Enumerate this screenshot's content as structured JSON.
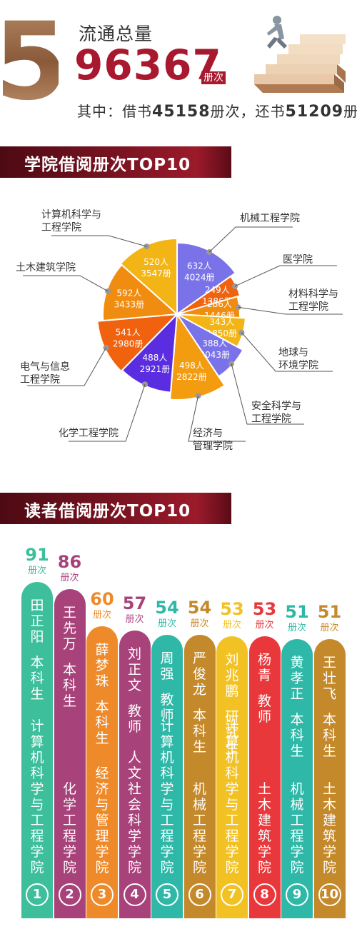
{
  "header": {
    "section_number": "5",
    "total_label": "流通总量",
    "total_value": "96367",
    "total_unit": "册次",
    "summary": {
      "prefix": "其中：借书",
      "borrow_value": "45158",
      "mid": "册次，还书",
      "return_value": "51209",
      "suffix": "册次"
    }
  },
  "section1": {
    "title": "学院借阅册次TOP10"
  },
  "section2": {
    "title": "读者借阅册次TOP10"
  },
  "chart_data": [
    {
      "type": "pie",
      "title": "学院借阅册次TOP10",
      "slices": [
        {
          "label": "机械工程学院",
          "people": "632人",
          "books": "4024册",
          "value": 4024,
          "color": "#7a72e8"
        },
        {
          "label": "医学院",
          "people": "249人",
          "books": "1386册",
          "value": 1386,
          "color": "#f0620e"
        },
        {
          "label": "材料科学与工程学院",
          "people": "286人",
          "books": "1446册",
          "value": 1446,
          "color": "#f08c10"
        },
        {
          "label": "地球与环境学院",
          "people": "343人",
          "books": "1850册",
          "value": 1850,
          "color": "#f3b415"
        },
        {
          "label": "安全科学与工程学院",
          "people": "388人",
          "books": "2043册",
          "value": 2043,
          "color": "#7a72e8"
        },
        {
          "label": "经济与管理学院",
          "people": "498人",
          "books": "2822册",
          "value": 2822,
          "color": "#f39c10"
        },
        {
          "label": "化学工程学院",
          "people": "488人",
          "books": "2921册",
          "value": 2921,
          "color": "#5a2ee0"
        },
        {
          "label": "电气与信息工程学院",
          "people": "541人",
          "books": "2980册",
          "value": 2980,
          "color": "#f0620e"
        },
        {
          "label": "土木建筑学院",
          "people": "592人",
          "books": "3433册",
          "value": 3433,
          "color": "#f08c10"
        },
        {
          "label": "计算机科学与工程学院",
          "people": "520人",
          "books": "3547册",
          "value": 3547,
          "color": "#f3b415"
        }
      ]
    },
    {
      "type": "bar",
      "title": "读者借阅册次TOP10",
      "unit": "册次",
      "readers": [
        {
          "rank": "1",
          "name": "田正阳",
          "role": "本科生",
          "college": "计算机科学与工程学院",
          "count": 91,
          "color": "#3cbf9a"
        },
        {
          "rank": "2",
          "name": "王先万",
          "role": "本科生",
          "college": "化学工程学院",
          "count": 86,
          "color": "#a8427a"
        },
        {
          "rank": "3",
          "name": "薛梦珠",
          "role": "本科生",
          "college": "经济与管理学院",
          "count": 60,
          "color": "#ee8a2a"
        },
        {
          "rank": "4",
          "name": "刘正文",
          "role": "教师",
          "college": "人文社会科学学院",
          "count": 57,
          "color": "#a8427a"
        },
        {
          "rank": "5",
          "name": "周强",
          "role": "教师",
          "college": "计算机科学与工程学院",
          "count": 54,
          "color": "#2fb8a8"
        },
        {
          "rank": "6",
          "name": "严俊龙",
          "role": "本科生",
          "college": "机械工程学院",
          "count": 54,
          "color": "#c4892a"
        },
        {
          "rank": "7",
          "name": "刘兆鹏",
          "role": "研究生",
          "college": "计算机科学与工程学院",
          "count": 53,
          "color": "#f2c224"
        },
        {
          "rank": "8",
          "name": "杨青",
          "role": "教师",
          "college": "土木建筑学院",
          "count": 53,
          "color": "#e8383c"
        },
        {
          "rank": "9",
          "name": "黄孝正",
          "role": "本科生",
          "college": "机械工程学院",
          "count": 51,
          "color": "#2fb8a8"
        },
        {
          "rank": "10",
          "name": "王壮飞",
          "role": "本科生",
          "college": "土木建筑学院",
          "count": 51,
          "color": "#c4892a"
        }
      ]
    }
  ]
}
